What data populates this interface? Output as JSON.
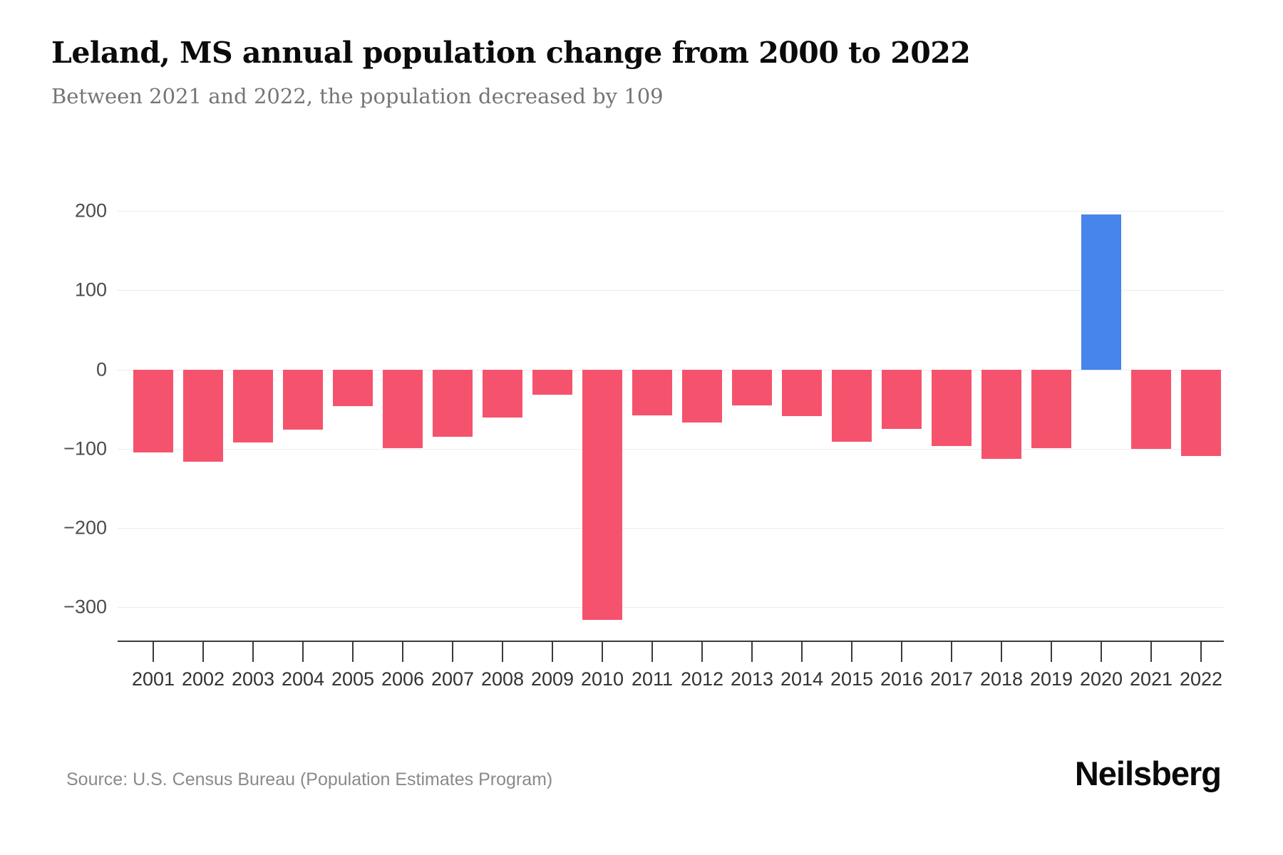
{
  "header": {
    "title": "Leland, MS annual population change from 2000 to 2022",
    "subtitle": "Between 2021 and 2022, the population decreased by 109"
  },
  "footer": {
    "source": "Source: U.S. Census Bureau (Population Estimates Program)",
    "brand": "Neilsberg"
  },
  "colors": {
    "negative_bar": "#f5536d",
    "positive_bar": "#4784ec",
    "gridline": "#ececec",
    "axis": "#3a3a3a"
  },
  "chart_data": {
    "type": "bar",
    "title": "Leland, MS annual population change from 2000 to 2022",
    "subtitle": "Between 2021 and 2022, the population decreased by 109",
    "xlabel": "",
    "ylabel": "",
    "categories": [
      "2001",
      "2002",
      "2003",
      "2004",
      "2005",
      "2006",
      "2007",
      "2008",
      "2009",
      "2010",
      "2011",
      "2012",
      "2013",
      "2014",
      "2015",
      "2016",
      "2017",
      "2018",
      "2019",
      "2020",
      "2021",
      "2022"
    ],
    "values": [
      -105,
      -116,
      -92,
      -76,
      -46,
      -99,
      -85,
      -61,
      -32,
      -316,
      -58,
      -67,
      -45,
      -59,
      -91,
      -75,
      -97,
      -113,
      -99,
      196,
      -100,
      -109
    ],
    "ylim": [
      -350,
      230
    ],
    "yticks": [
      {
        "value": 200,
        "label": "200"
      },
      {
        "value": 100,
        "label": "100"
      },
      {
        "value": 0,
        "label": "0"
      },
      {
        "value": -100,
        "label": "−100"
      },
      {
        "value": -200,
        "label": "−200"
      },
      {
        "value": -300,
        "label": "−300"
      }
    ],
    "grid": true,
    "legend": false,
    "series_color_rule": "negative values red (#f5536d), positive values blue (#4784ec)"
  }
}
